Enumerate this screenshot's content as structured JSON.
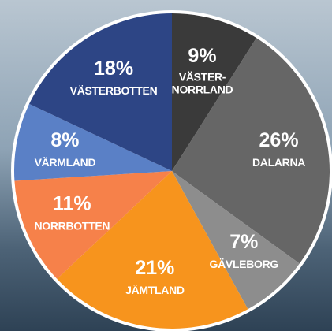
{
  "chart_data": {
    "type": "pie",
    "categories": [
      "VÄSTER-NORRLAND",
      "DALARNA",
      "GÄVLEBORG",
      "JÄMTLAND",
      "NORRBOTTEN",
      "VÄRMLAND",
      "VÄSTERBOTTEN"
    ],
    "values": [
      9,
      26,
      7,
      21,
      11,
      8,
      18
    ],
    "value_labels": [
      "9%",
      "26%",
      "7%",
      "21%",
      "11%",
      "8%",
      "18%"
    ],
    "colors": [
      "#3a3a3a",
      "#666666",
      "#8d8d8d",
      "#f7941d",
      "#f6814a",
      "#5a80c6",
      "#2d4585"
    ]
  }
}
